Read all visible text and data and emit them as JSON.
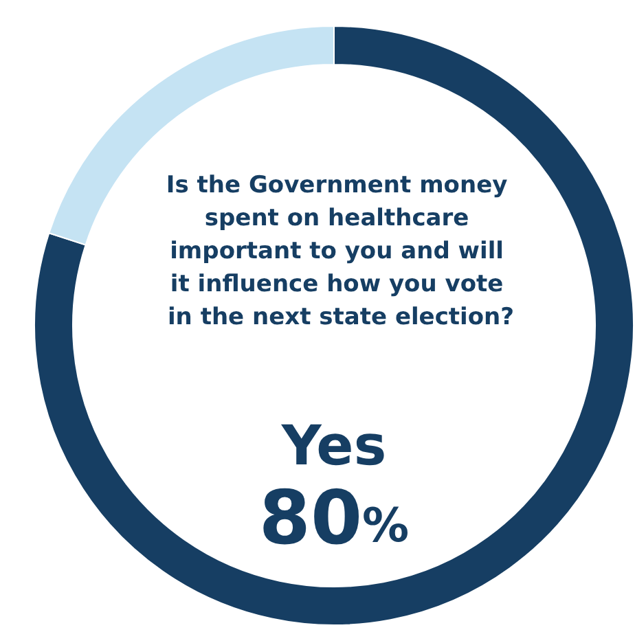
{
  "chart_data": {
    "type": "donut",
    "title": "Is the Government money spent on healthcare important to you and will it influence how you vote in the next state election?",
    "categories": [
      "Yes",
      null
    ],
    "values": [
      80,
      20
    ],
    "colors": [
      "#163e63",
      "#c5e3f3"
    ],
    "value_labels": [
      "80%",
      null
    ],
    "legend": false
  }
}
